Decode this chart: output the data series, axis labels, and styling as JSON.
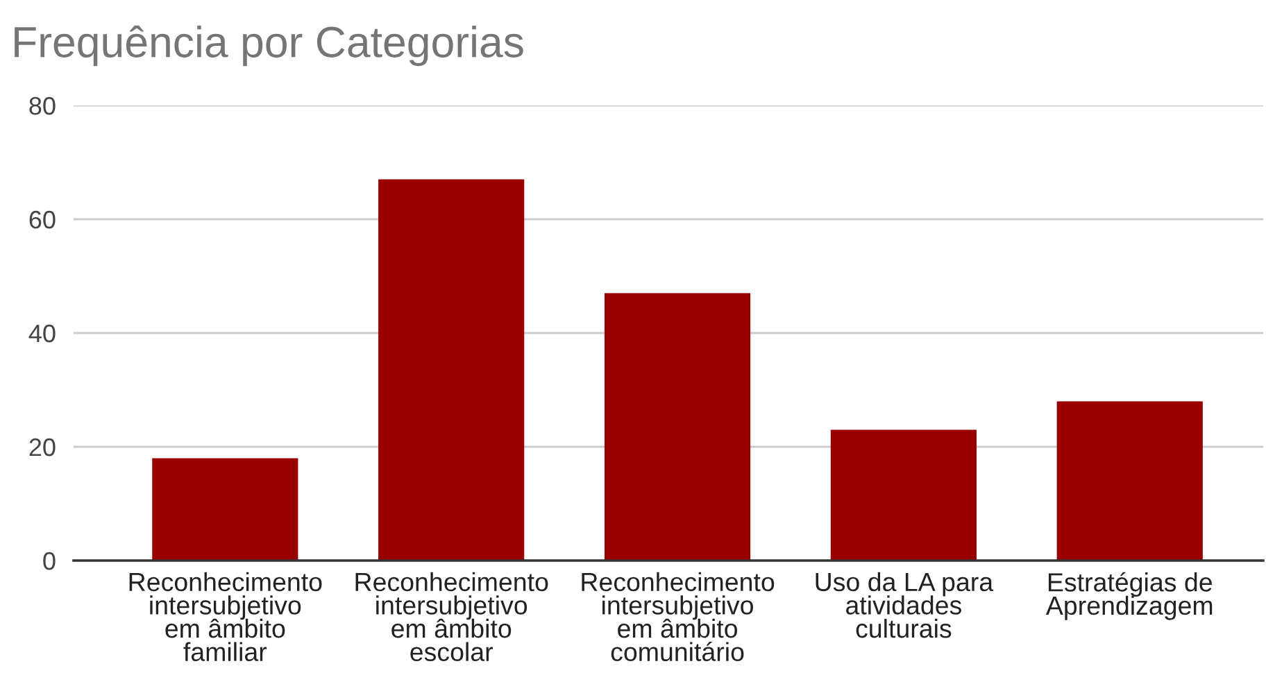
{
  "chart_data": {
    "type": "bar",
    "title": "Frequência por Categorias",
    "categories": [
      "Reconhecimento\nintersubjetivo\nem âmbito\nfamiliar",
      "Reconhecimento\nintersubjetivo\nem âmbito\nescolar",
      "Reconhecimento\nintersubjetivo\nem âmbito\ncomunitário",
      "Uso da LA para\natividades\nculturais",
      "Estratégias de\nAprendizagem"
    ],
    "values": [
      18,
      67,
      47,
      23,
      28
    ],
    "color": "#990000",
    "ylim": [
      0,
      80
    ],
    "yticks": [
      0,
      20,
      40,
      60,
      80
    ],
    "grid": "y"
  }
}
